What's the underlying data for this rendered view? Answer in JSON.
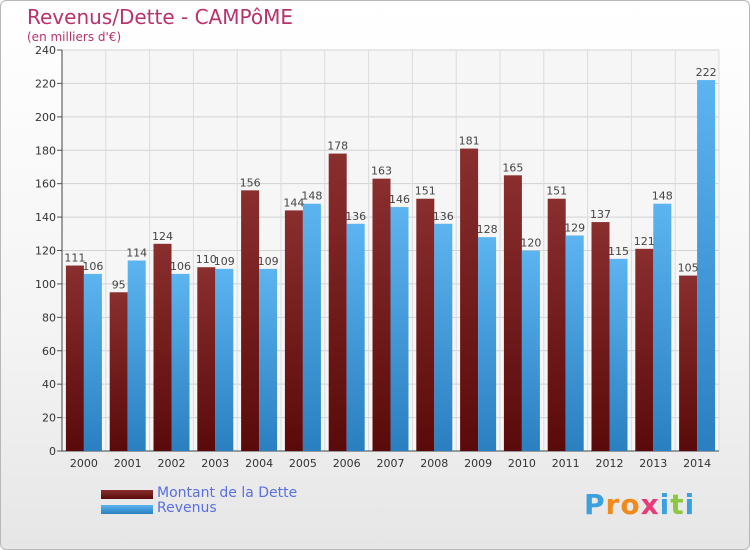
{
  "chart_data": {
    "type": "bar",
    "title": "Revenus/Dette - CAMPôME",
    "subtitle": "(en milliers d'€)",
    "categories": [
      "2000",
      "2001",
      "2002",
      "2003",
      "2004",
      "2005",
      "2006",
      "2007",
      "2008",
      "2009",
      "2010",
      "2011",
      "2012",
      "2013",
      "2014"
    ],
    "series": [
      {
        "name": "Montant de la Dette",
        "values": [
          111,
          95,
          124,
          110,
          156,
          144,
          178,
          163,
          151,
          181,
          165,
          151,
          137,
          121,
          105
        ],
        "color": "#7a1a1a"
      },
      {
        "name": "Revenus",
        "values": [
          106,
          114,
          106,
          109,
          109,
          148,
          136,
          146,
          136,
          128,
          120,
          129,
          115,
          148,
          222
        ],
        "color": "#4aa6e8"
      }
    ],
    "ylim": [
      0,
      240
    ],
    "yticks": [
      0,
      20,
      40,
      60,
      80,
      100,
      120,
      140,
      160,
      180,
      200,
      220,
      240
    ],
    "grid": true,
    "legend": "bottom-left"
  },
  "brand": {
    "letters": [
      "P",
      "r",
      "o",
      "x",
      "i",
      "t",
      "i"
    ],
    "colors": [
      "#3aa0e0",
      "#f08a1c",
      "#f08a1c",
      "#e83a7a",
      "#3aa0e0",
      "#8dc63f",
      "#3aa0e0"
    ]
  }
}
